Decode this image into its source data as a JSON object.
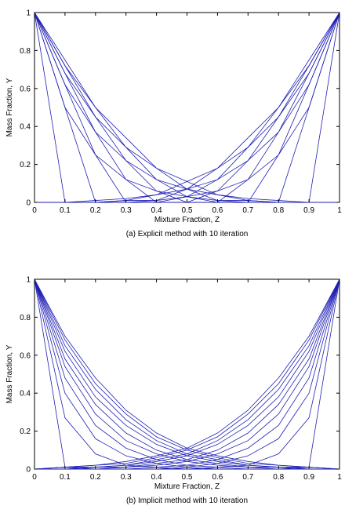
{
  "chart_data": [
    {
      "type": "line",
      "caption": "(a) Explicit method with 10 iteration",
      "xlabel": "Mixture Fraction, Z",
      "ylabel": "Mass Fraction, Y",
      "xlim": [
        0,
        1
      ],
      "ylim": [
        0,
        1
      ],
      "xticks": [
        "0",
        "0.1",
        "0.2",
        "0.3",
        "0.4",
        "0.5",
        "0.6",
        "0.7",
        "0.8",
        "0.9",
        "1"
      ],
      "yticks": [
        "0",
        "0.2",
        "0.4",
        "0.6",
        "0.8",
        "1"
      ],
      "grid": false,
      "line_color": "#1f1fb4",
      "x": [
        0,
        0.1,
        0.2,
        0.3,
        0.4,
        0.5,
        0.6,
        0.7,
        0.8,
        0.9,
        1
      ],
      "series": [
        {
          "values": [
            1,
            0,
            0,
            0,
            0,
            0,
            0,
            0,
            0,
            0,
            0
          ]
        },
        {
          "values": [
            1,
            0.5,
            0,
            0,
            0,
            0,
            0,
            0,
            0,
            0,
            0
          ]
        },
        {
          "values": [
            1,
            0.5,
            0.25,
            0,
            0,
            0,
            0,
            0,
            0,
            0,
            0
          ]
        },
        {
          "values": [
            1,
            0.62,
            0.25,
            0.12,
            0,
            0,
            0,
            0,
            0,
            0,
            0
          ]
        },
        {
          "values": [
            1,
            0.62,
            0.37,
            0.12,
            0.06,
            0,
            0,
            0,
            0,
            0,
            0
          ]
        },
        {
          "values": [
            1,
            0.68,
            0.37,
            0.22,
            0.06,
            0.03,
            0,
            0,
            0,
            0,
            0
          ]
        },
        {
          "values": [
            1,
            0.68,
            0.45,
            0.22,
            0.12,
            0.03,
            0.01,
            0,
            0,
            0,
            0
          ]
        },
        {
          "values": [
            1,
            0.72,
            0.45,
            0.29,
            0.12,
            0.07,
            0.01,
            0.01,
            0,
            0,
            0
          ]
        },
        {
          "values": [
            1,
            0.72,
            0.5,
            0.29,
            0.18,
            0.07,
            0.04,
            0.01,
            0,
            0,
            0
          ]
        },
        {
          "values": [
            1,
            0.75,
            0.5,
            0.34,
            0.18,
            0.11,
            0.04,
            0.02,
            0.01,
            0,
            0
          ]
        },
        {
          "values": [
            0,
            0,
            0,
            0,
            0,
            0,
            0,
            0,
            0,
            0,
            1
          ]
        },
        {
          "values": [
            0,
            0,
            0,
            0,
            0,
            0,
            0,
            0,
            0,
            0.5,
            1
          ]
        },
        {
          "values": [
            0,
            0,
            0,
            0,
            0,
            0,
            0,
            0,
            0.25,
            0.5,
            1
          ]
        },
        {
          "values": [
            0,
            0,
            0,
            0,
            0,
            0,
            0,
            0.12,
            0.25,
            0.62,
            1
          ]
        },
        {
          "values": [
            0,
            0,
            0,
            0,
            0,
            0,
            0.06,
            0.12,
            0.37,
            0.62,
            1
          ]
        },
        {
          "values": [
            0,
            0,
            0,
            0,
            0,
            0.03,
            0.06,
            0.22,
            0.37,
            0.68,
            1
          ]
        },
        {
          "values": [
            0,
            0,
            0,
            0,
            0.01,
            0.03,
            0.12,
            0.22,
            0.45,
            0.68,
            1
          ]
        },
        {
          "values": [
            0,
            0,
            0,
            0.01,
            0.01,
            0.07,
            0.12,
            0.29,
            0.45,
            0.72,
            1
          ]
        },
        {
          "values": [
            0,
            0,
            0,
            0.01,
            0.04,
            0.07,
            0.18,
            0.29,
            0.5,
            0.72,
            1
          ]
        },
        {
          "values": [
            0,
            0,
            0.01,
            0.02,
            0.04,
            0.11,
            0.18,
            0.34,
            0.5,
            0.75,
            1
          ]
        }
      ]
    },
    {
      "type": "line",
      "caption": "(b) Implicit method with 10 iteration",
      "xlabel": "Mixture Fraction, Z",
      "ylabel": "Mass Fraction, Y",
      "xlim": [
        0,
        1
      ],
      "ylim": [
        0,
        1
      ],
      "xticks": [
        "0",
        "0.1",
        "0.2",
        "0.3",
        "0.4",
        "0.5",
        "0.6",
        "0.7",
        "0.8",
        "0.9",
        "1"
      ],
      "yticks": [
        "0",
        "0.2",
        "0.4",
        "0.6",
        "0.8",
        "1"
      ],
      "grid": false,
      "line_color": "#1f1fb4",
      "x": [
        0,
        0.1,
        0.2,
        0.3,
        0.4,
        0.5,
        0.6,
        0.7,
        0.8,
        0.9,
        1
      ],
      "series": [
        {
          "values": [
            1,
            0.01,
            0,
            0,
            0,
            0,
            0,
            0,
            0,
            0,
            0
          ]
        },
        {
          "values": [
            1,
            0.27,
            0.08,
            0.02,
            0.01,
            0,
            0,
            0,
            0,
            0,
            0
          ]
        },
        {
          "values": [
            1,
            0.4,
            0.16,
            0.07,
            0.03,
            0.01,
            0,
            0,
            0,
            0,
            0
          ]
        },
        {
          "values": [
            1,
            0.48,
            0.23,
            0.11,
            0.05,
            0.02,
            0.01,
            0,
            0,
            0,
            0
          ]
        },
        {
          "values": [
            1,
            0.54,
            0.29,
            0.15,
            0.08,
            0.04,
            0.02,
            0.01,
            0,
            0,
            0
          ]
        },
        {
          "values": [
            1,
            0.58,
            0.34,
            0.19,
            0.1,
            0.05,
            0.03,
            0.01,
            0.01,
            0,
            0
          ]
        },
        {
          "values": [
            1,
            0.62,
            0.38,
            0.23,
            0.13,
            0.07,
            0.04,
            0.02,
            0.01,
            0,
            0
          ]
        },
        {
          "values": [
            1,
            0.65,
            0.42,
            0.26,
            0.15,
            0.08,
            0.05,
            0.02,
            0.01,
            0.01,
            0
          ]
        },
        {
          "values": [
            1,
            0.68,
            0.45,
            0.29,
            0.17,
            0.1,
            0.06,
            0.03,
            0.02,
            0.01,
            0
          ]
        },
        {
          "values": [
            1,
            0.7,
            0.48,
            0.31,
            0.19,
            0.11,
            0.07,
            0.04,
            0.02,
            0.01,
            0
          ]
        },
        {
          "values": [
            0,
            0,
            0,
            0,
            0,
            0,
            0,
            0,
            0,
            0.01,
            1
          ]
        },
        {
          "values": [
            0,
            0,
            0,
            0,
            0,
            0,
            0.01,
            0.02,
            0.08,
            0.27,
            1
          ]
        },
        {
          "values": [
            0,
            0,
            0,
            0,
            0,
            0.01,
            0.03,
            0.07,
            0.16,
            0.4,
            1
          ]
        },
        {
          "values": [
            0,
            0,
            0,
            0,
            0.01,
            0.02,
            0.05,
            0.11,
            0.23,
            0.48,
            1
          ]
        },
        {
          "values": [
            0,
            0,
            0,
            0.01,
            0.02,
            0.04,
            0.08,
            0.15,
            0.29,
            0.54,
            1
          ]
        },
        {
          "values": [
            0,
            0,
            0.01,
            0.01,
            0.03,
            0.05,
            0.1,
            0.19,
            0.34,
            0.58,
            1
          ]
        },
        {
          "values": [
            0,
            0,
            0.01,
            0.02,
            0.04,
            0.07,
            0.13,
            0.23,
            0.38,
            0.62,
            1
          ]
        },
        {
          "values": [
            0,
            0.01,
            0.01,
            0.02,
            0.05,
            0.08,
            0.15,
            0.26,
            0.42,
            0.65,
            1
          ]
        },
        {
          "values": [
            0,
            0.01,
            0.02,
            0.03,
            0.06,
            0.1,
            0.17,
            0.29,
            0.45,
            0.68,
            1
          ]
        },
        {
          "values": [
            0,
            0.01,
            0.02,
            0.04,
            0.07,
            0.11,
            0.19,
            0.31,
            0.48,
            0.7,
            1
          ]
        }
      ]
    }
  ]
}
